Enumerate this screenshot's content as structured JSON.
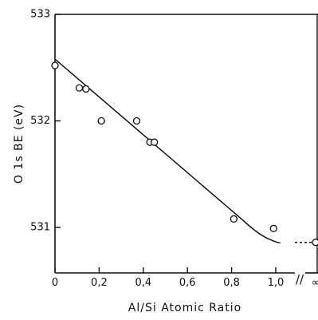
{
  "chart_data": {
    "type": "scatter",
    "xlabel": "Al/Si  Atomic Ratio",
    "ylabel": "O 1s  BE (eV)",
    "xlim": [
      0,
      1.1
    ],
    "ylim": [
      530.6,
      533
    ],
    "x_ticks": [
      0,
      0.2,
      0.4,
      0.6,
      0.8,
      1.0
    ],
    "x_tick_labels": [
      "0",
      "0,2",
      "0,4",
      "0,6",
      "0,8",
      "1,0"
    ],
    "y_ticks": [
      531,
      532,
      533
    ],
    "y_tick_labels": [
      "531",
      "532",
      "533"
    ],
    "axis_break": "//",
    "infinity_label": "∞",
    "grid": false,
    "series": [
      {
        "points": [
          {
            "x": 0.0,
            "y": 532.52
          },
          {
            "x": 0.11,
            "y": 532.31
          },
          {
            "x": 0.14,
            "y": 532.3
          },
          {
            "x": 0.21,
            "y": 532.0
          },
          {
            "x": 0.37,
            "y": 532.0
          },
          {
            "x": 0.43,
            "y": 531.8
          },
          {
            "x": 0.45,
            "y": 531.8
          },
          {
            "x": 0.81,
            "y": 531.08
          },
          {
            "x": 0.99,
            "y": 530.99
          }
        ]
      }
    ],
    "infinity_point": {
      "x": "∞",
      "y": 530.86
    },
    "trend_line": [
      {
        "x": 0.0,
        "y": 532.58
      },
      {
        "x": 0.85,
        "y": 531.07
      },
      {
        "x": 0.92,
        "y": 530.95
      },
      {
        "x": 0.97,
        "y": 530.89
      },
      {
        "x": 1.02,
        "y": 530.86
      }
    ]
  }
}
